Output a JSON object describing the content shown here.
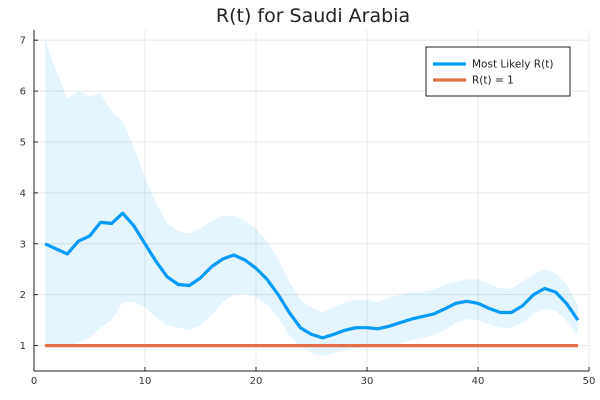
{
  "chart_data": {
    "type": "line",
    "title": "R(t) for Saudi Arabia",
    "xlabel": "",
    "ylabel": "",
    "xlim": [
      0,
      50
    ],
    "ylim": [
      0.5,
      7.2
    ],
    "xticks": [
      0,
      10,
      20,
      30,
      40,
      50
    ],
    "yticks": [
      1,
      2,
      3,
      4,
      5,
      6,
      7
    ],
    "grid": true,
    "legend_position": "top-right",
    "x": [
      1,
      2,
      3,
      4,
      5,
      6,
      7,
      8,
      9,
      10,
      11,
      12,
      13,
      14,
      15,
      16,
      17,
      18,
      19,
      20,
      21,
      22,
      23,
      24,
      25,
      26,
      27,
      28,
      29,
      30,
      31,
      32,
      33,
      34,
      35,
      36,
      37,
      38,
      39,
      40,
      41,
      42,
      43,
      44,
      45,
      46,
      47,
      48,
      49
    ],
    "series": [
      {
        "name": "Most Likely R(t)",
        "color": "#009af9",
        "values": [
          3.0,
          2.9,
          2.8,
          3.05,
          3.15,
          3.42,
          3.4,
          3.6,
          3.35,
          3.0,
          2.65,
          2.35,
          2.2,
          2.18,
          2.33,
          2.55,
          2.7,
          2.78,
          2.68,
          2.52,
          2.3,
          2.0,
          1.65,
          1.35,
          1.22,
          1.15,
          1.22,
          1.3,
          1.35,
          1.35,
          1.33,
          1.38,
          1.45,
          1.52,
          1.57,
          1.62,
          1.72,
          1.83,
          1.87,
          1.83,
          1.73,
          1.65,
          1.65,
          1.78,
          2.0,
          2.12,
          2.05,
          1.82,
          1.5
        ]
      },
      {
        "name": "R(t) = 1",
        "color": "#e26f46",
        "values": [
          1,
          1,
          1,
          1,
          1,
          1,
          1,
          1,
          1,
          1,
          1,
          1,
          1,
          1,
          1,
          1,
          1,
          1,
          1,
          1,
          1,
          1,
          1,
          1,
          1,
          1,
          1,
          1,
          1,
          1,
          1,
          1,
          1,
          1,
          1,
          1,
          1,
          1,
          1,
          1,
          1,
          1,
          1,
          1,
          1,
          1,
          1,
          1,
          1
        ]
      }
    ],
    "band": {
      "color": "#009af9",
      "lower": [
        1.0,
        1.0,
        0.98,
        1.05,
        1.15,
        1.35,
        1.5,
        1.85,
        1.85,
        1.75,
        1.55,
        1.4,
        1.35,
        1.3,
        1.4,
        1.6,
        1.85,
        2.0,
        2.02,
        1.95,
        1.8,
        1.55,
        1.2,
        0.98,
        0.85,
        0.8,
        0.85,
        0.9,
        0.95,
        0.97,
        0.98,
        1.0,
        1.05,
        1.1,
        1.15,
        1.2,
        1.3,
        1.45,
        1.52,
        1.5,
        1.42,
        1.35,
        1.35,
        1.45,
        1.62,
        1.72,
        1.68,
        1.48,
        1.2
      ],
      "upper": [
        7.0,
        6.4,
        5.85,
        6.0,
        5.9,
        5.95,
        5.6,
        5.4,
        4.9,
        4.3,
        3.8,
        3.4,
        3.25,
        3.2,
        3.3,
        3.45,
        3.55,
        3.55,
        3.45,
        3.3,
        3.05,
        2.7,
        2.25,
        1.9,
        1.75,
        1.65,
        1.75,
        1.85,
        1.9,
        1.9,
        1.85,
        1.95,
        2.0,
        2.05,
        2.05,
        2.1,
        2.2,
        2.25,
        2.3,
        2.3,
        2.22,
        2.12,
        2.12,
        2.25,
        2.4,
        2.5,
        2.42,
        2.2,
        1.8
      ]
    }
  }
}
